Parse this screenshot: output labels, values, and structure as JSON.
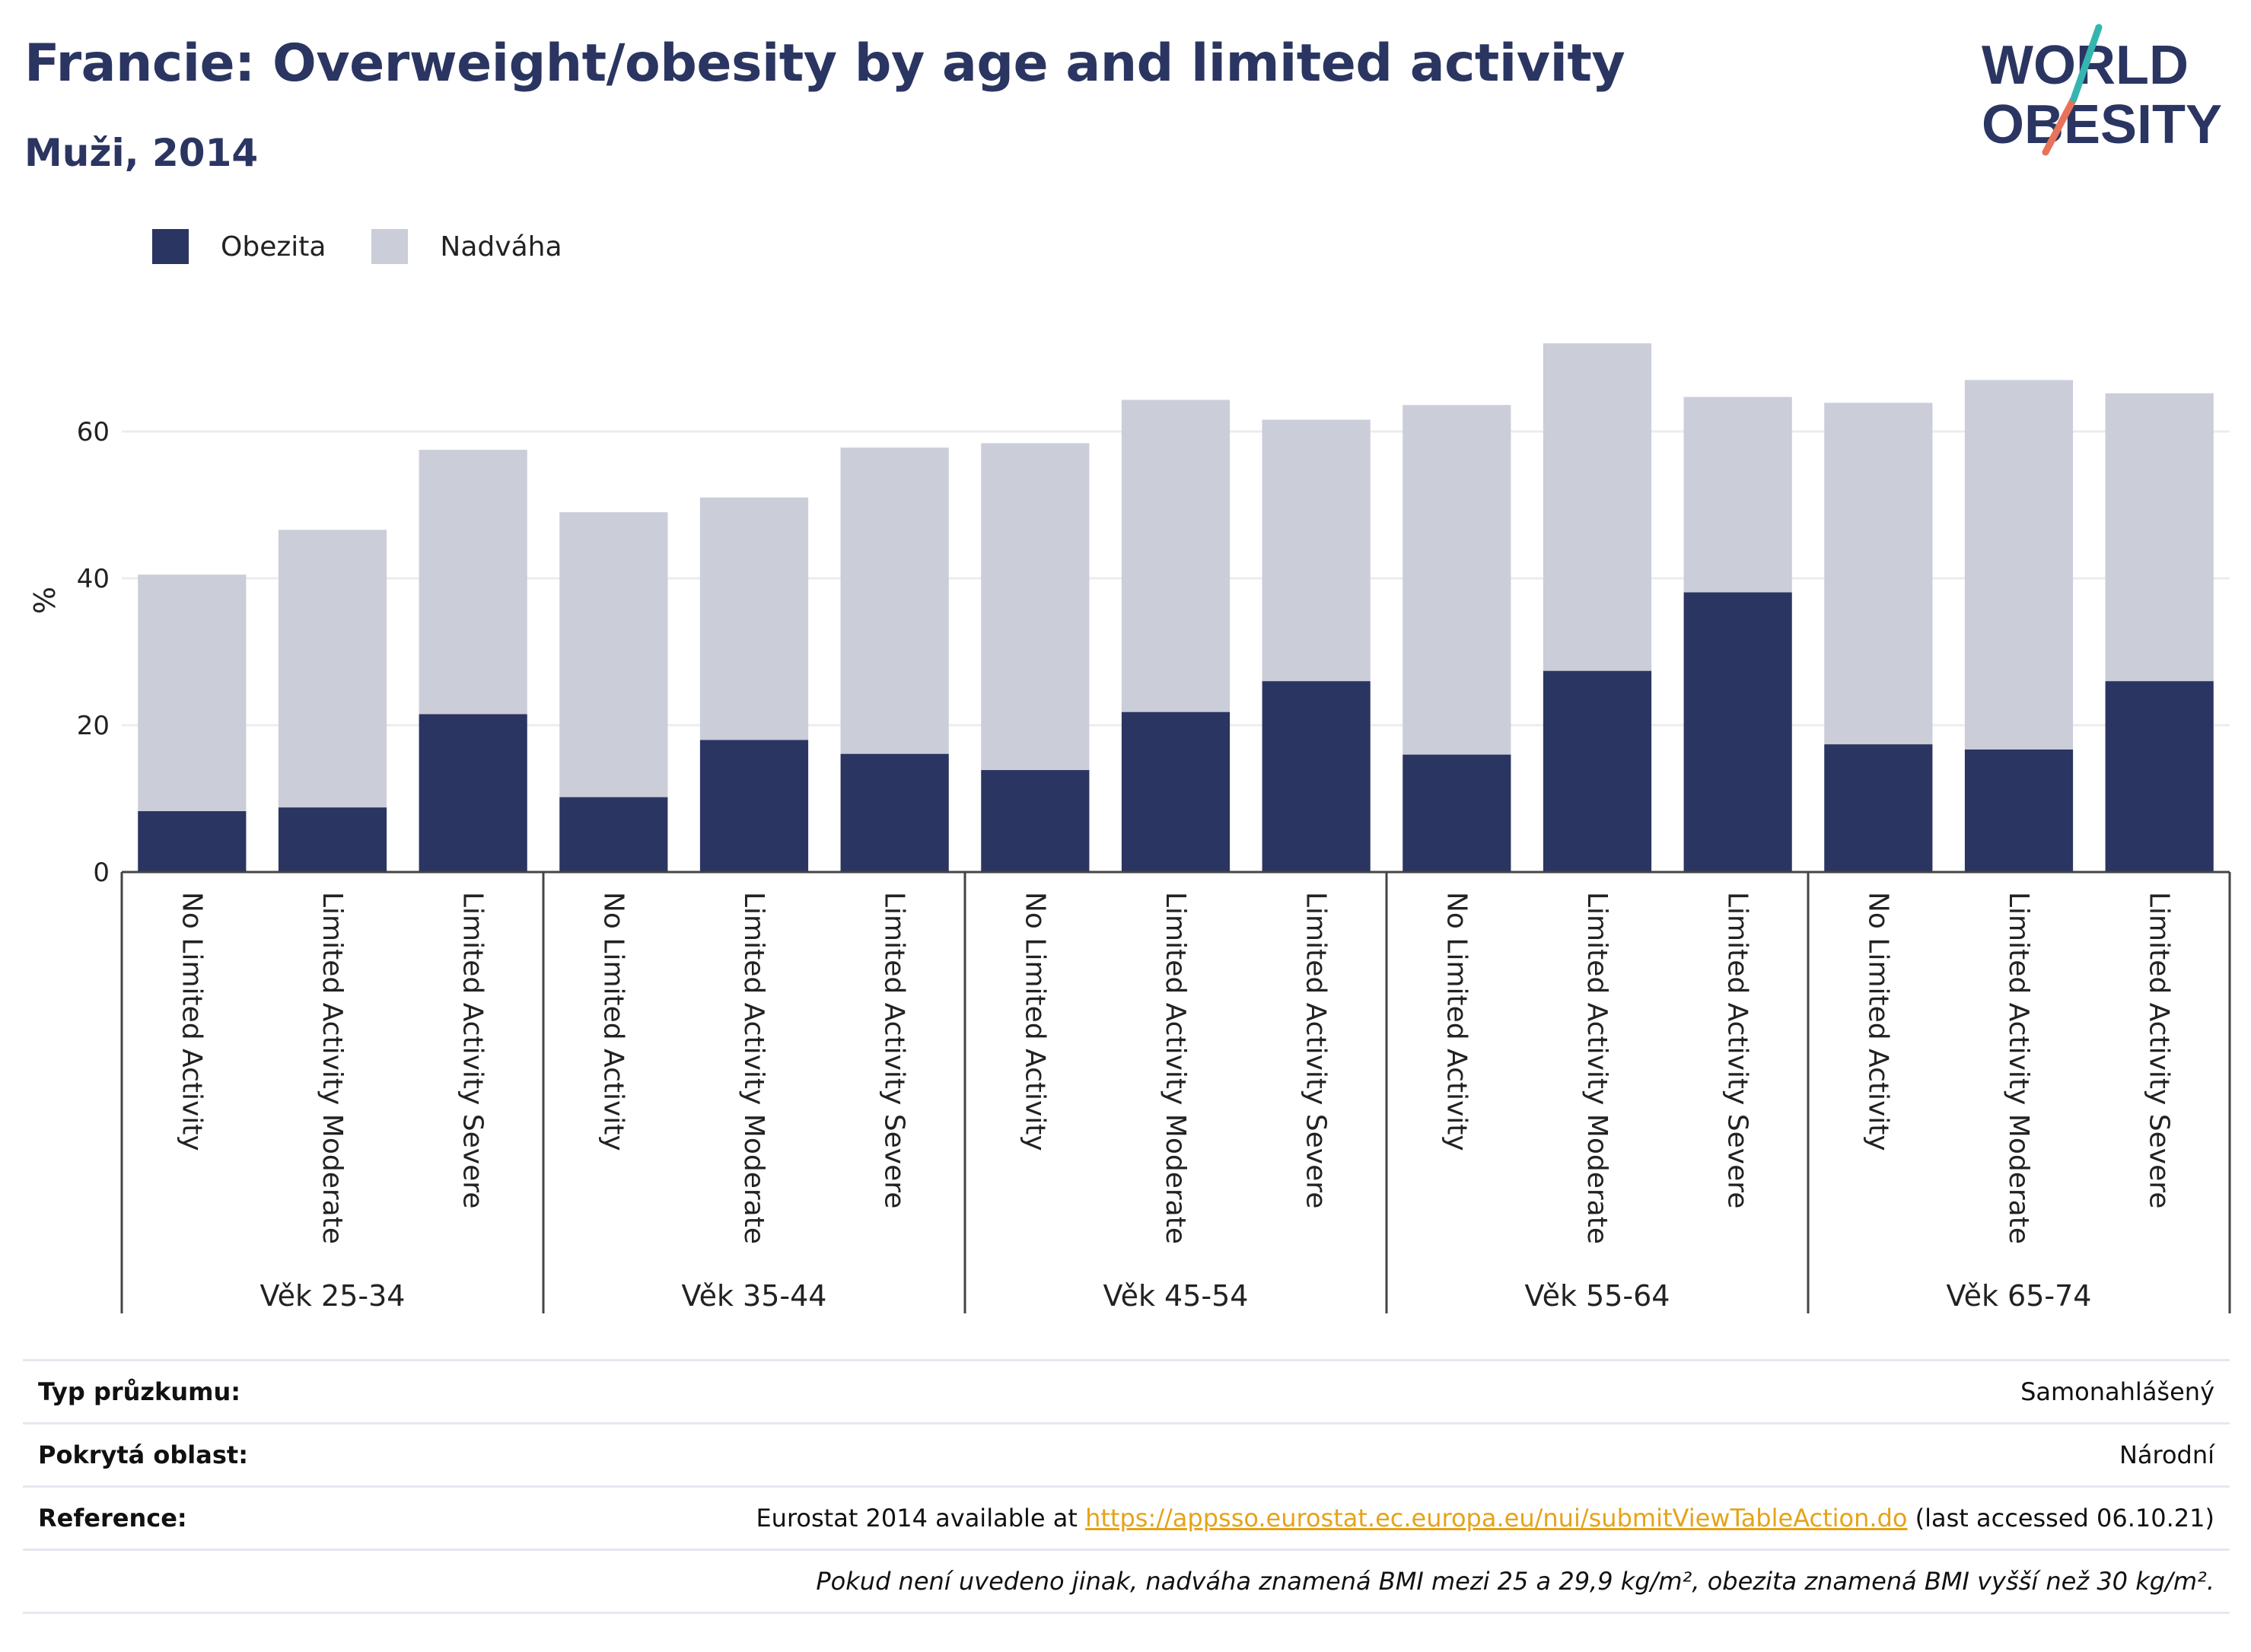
{
  "header": {
    "title": "Francie: Overweight/obesity by age and limited activity",
    "subtitle": "Muži, 2014",
    "logo_line1": "WORLD",
    "logo_line2": "OBESITY"
  },
  "legend": [
    {
      "label": "Obezita",
      "color": "#2b3561"
    },
    {
      "label": "Nadváha",
      "color": "#cbcdd9"
    }
  ],
  "chart_data": {
    "type": "bar",
    "stacked": true,
    "ylabel": "%",
    "ylim": [
      0,
      75
    ],
    "yticks": [
      0,
      20,
      40,
      60
    ],
    "grid": true,
    "legend_position": "top-left",
    "groups": [
      {
        "label": "Věk 25-34",
        "categories": [
          "No Limited Activity",
          "Limited Activity Moderate",
          "Limited Activity Severe"
        ]
      },
      {
        "label": "Věk 35-44",
        "categories": [
          "No Limited Activity",
          "Limited Activity Moderate",
          "Limited Activity Severe"
        ]
      },
      {
        "label": "Věk 45-54",
        "categories": [
          "No Limited Activity",
          "Limited Activity Moderate",
          "Limited Activity Severe"
        ]
      },
      {
        "label": "Věk 55-64",
        "categories": [
          "No Limited Activity",
          "Limited Activity Moderate",
          "Limited Activity Severe"
        ]
      },
      {
        "label": "Věk 65-74",
        "categories": [
          "No Limited Activity",
          "Limited Activity Moderate",
          "Limited Activity Severe"
        ]
      }
    ],
    "series": [
      {
        "name": "Obezita",
        "color": "#2b3561",
        "values": [
          8.3,
          8.8,
          21.5,
          10.2,
          18.0,
          16.1,
          13.9,
          21.8,
          26.0,
          16.0,
          27.4,
          38.1,
          17.4,
          16.7,
          26.0
        ]
      },
      {
        "name": "Nadváha",
        "color": "#cbcdd9",
        "values": [
          32.2,
          37.8,
          36.0,
          38.8,
          33.0,
          41.7,
          44.5,
          42.5,
          35.6,
          47.6,
          44.6,
          26.6,
          46.5,
          50.3,
          39.2
        ]
      }
    ]
  },
  "info": {
    "survey_label": "Typ průzkumu:",
    "survey_value": "Samonahlášený",
    "area_label": "Pokrytá oblast:",
    "area_value": "Národní",
    "reference_label": "Reference:",
    "reference_prefix": "Eurostat 2014 available at ",
    "reference_link": "https://appsso.eurostat.ec.europa.eu/nui/submitViewTableAction.do",
    "reference_suffix": " (last accessed 06.10.21)",
    "note": "Pokud není uvedeno jinak, nadváha znamená BMI mezi 25 a 29,9 kg/m², obezita znamená BMI vyšší než 30 kg/m²."
  }
}
